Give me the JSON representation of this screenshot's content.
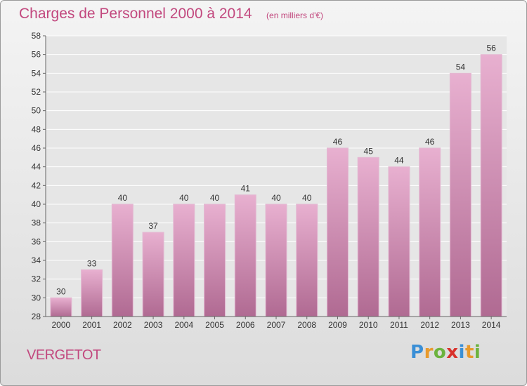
{
  "title": "Charges de Personnel 2000 à 2014",
  "subtitle": "(en milliers d'€)",
  "commune": "VERGETOT",
  "logo": {
    "text": "Proxiti",
    "letter_colors": [
      "#3a8fd6",
      "#e89a2c",
      "#6cb33e",
      "#d8322c",
      "#3a8fd6",
      "#e89a2c",
      "#6cb33e"
    ]
  },
  "colors": {
    "accent": "#c2487e",
    "bar_top": "#e8b0d0",
    "bar_bottom": "#b06a92"
  },
  "chart_data": {
    "type": "bar",
    "categories": [
      "2000",
      "2001",
      "2002",
      "2003",
      "2004",
      "2005",
      "2006",
      "2007",
      "2008",
      "2009",
      "2010",
      "2011",
      "2012",
      "2013",
      "2014"
    ],
    "values": [
      30,
      33,
      40,
      37,
      40,
      40,
      41,
      40,
      40,
      46,
      45,
      44,
      46,
      54,
      56
    ],
    "ylim": [
      28,
      58
    ],
    "yticks": [
      28,
      30,
      32,
      34,
      36,
      38,
      40,
      42,
      44,
      46,
      48,
      50,
      52,
      54,
      56,
      58
    ],
    "grid": true
  }
}
